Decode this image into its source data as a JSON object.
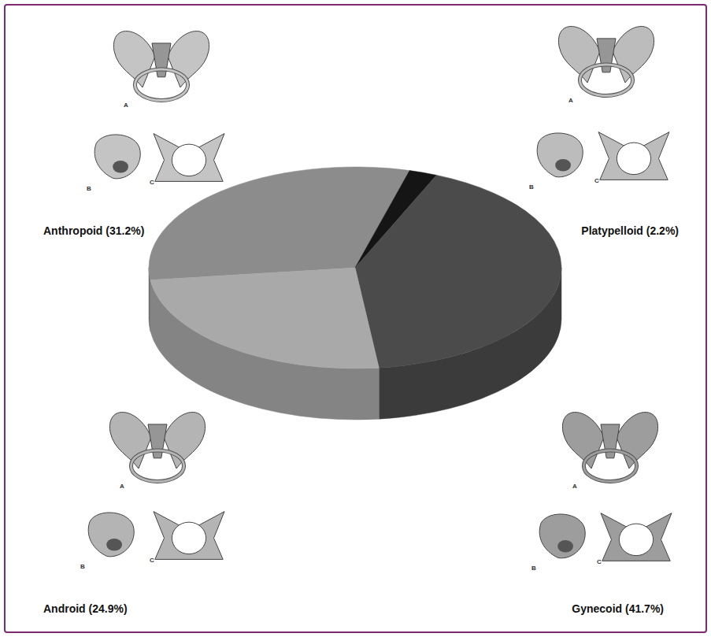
{
  "chart_data": {
    "type": "pie",
    "categories": [
      "Anthropoid (31.2%)",
      "Platypelloid (2.2%)",
      "Gynecoid (41.7%)",
      "Android (24.9%)"
    ],
    "values": [
      31.2,
      2.2,
      41.7,
      24.9
    ],
    "colors": [
      "#8c8c8c",
      "#151515",
      "#4b4b4b",
      "#a9a9a9"
    ],
    "annotations": [
      "A",
      "B",
      "C"
    ]
  }
}
